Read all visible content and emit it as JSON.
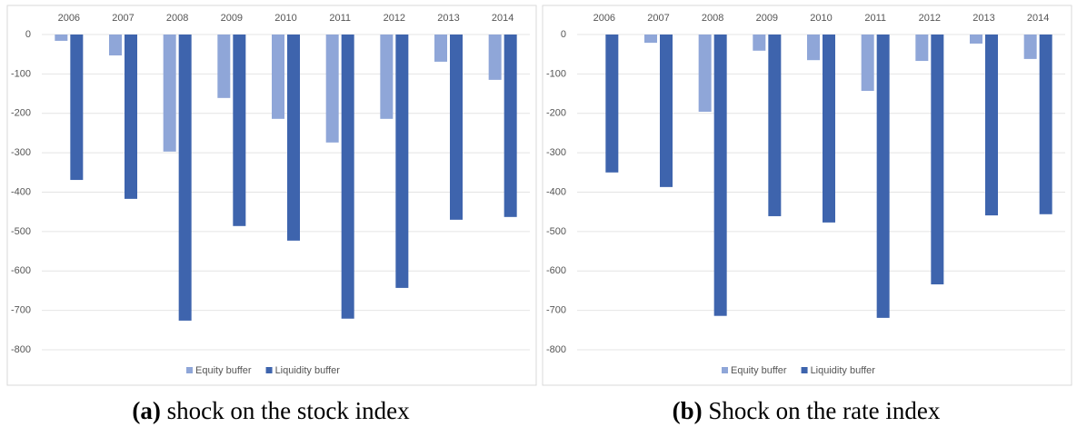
{
  "chart_data": [
    {
      "type": "bar",
      "caption_label": "(a)",
      "caption": "shock on the stock index",
      "categories": [
        "2006",
        "2007",
        "2008",
        "2009",
        "2010",
        "2011",
        "2012",
        "2013",
        "2014"
      ],
      "series": [
        {
          "name": "Equity buffer",
          "color": "#8fa6d8",
          "values": [
            -16,
            -53,
            -297,
            -161,
            -214,
            -274,
            -214,
            -69,
            -115
          ]
        },
        {
          "name": "Liquidity buffer",
          "color": "#3e64ad",
          "values": [
            -369,
            -417,
            -726,
            -486,
            -523,
            -721,
            -643,
            -470,
            -463
          ]
        }
      ],
      "ylim": [
        -800,
        0
      ],
      "yticks": [
        -800,
        -700,
        -600,
        -500,
        -400,
        -300,
        -200,
        -100,
        0
      ],
      "grid": true,
      "legend": "bottom"
    },
    {
      "type": "bar",
      "caption_label": "(b)",
      "caption": "Shock on the rate index",
      "categories": [
        "2006",
        "2007",
        "2008",
        "2009",
        "2010",
        "2011",
        "2012",
        "2013",
        "2014"
      ],
      "series": [
        {
          "name": "Equity buffer",
          "color": "#8fa6d8",
          "values": [
            0,
            -21,
            -196,
            -41,
            -65,
            -143,
            -67,
            -23,
            -62
          ]
        },
        {
          "name": "Liquidity buffer",
          "color": "#3e64ad",
          "values": [
            -350,
            -387,
            -714,
            -461,
            -477,
            -719,
            -634,
            -459,
            -456
          ]
        }
      ],
      "ylim": [
        -800,
        0
      ],
      "yticks": [
        -800,
        -700,
        -600,
        -500,
        -400,
        -300,
        -200,
        -100,
        0
      ],
      "grid": true,
      "legend": "bottom"
    }
  ]
}
